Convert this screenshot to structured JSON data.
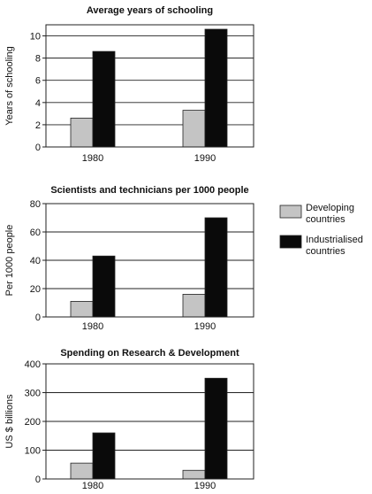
{
  "chart_data": [
    {
      "type": "bar",
      "title": "Average years of schooling",
      "ylabel": "Years of schooling",
      "xlabel": "",
      "categories": [
        "1980",
        "1990"
      ],
      "ylim": [
        0,
        11
      ],
      "yticks": [
        0,
        2,
        4,
        6,
        8,
        10
      ],
      "grid": true,
      "series": [
        {
          "name": "Developing countries",
          "values": [
            2.6,
            3.3
          ]
        },
        {
          "name": "Industrialised countries",
          "values": [
            8.6,
            10.6
          ]
        }
      ]
    },
    {
      "type": "bar",
      "title": "Scientists and technicians per 1000 people",
      "ylabel": "Per 1000 people",
      "xlabel": "",
      "categories": [
        "1980",
        "1990"
      ],
      "ylim": [
        0,
        80
      ],
      "yticks": [
        0,
        20,
        40,
        60,
        80
      ],
      "grid": true,
      "series": [
        {
          "name": "Developing countries",
          "values": [
            11,
            16
          ]
        },
        {
          "name": "Industrialised countries",
          "values": [
            43,
            70
          ]
        }
      ]
    },
    {
      "type": "bar",
      "title": "Spending on Research & Development",
      "ylabel": "US $ billions",
      "xlabel": "",
      "categories": [
        "1980",
        "1990"
      ],
      "ylim": [
        0,
        400
      ],
      "yticks": [
        0,
        100,
        200,
        300,
        400
      ],
      "grid": true,
      "series": [
        {
          "name": "Developing countries",
          "values": [
            55,
            30
          ]
        },
        {
          "name": "Industrialised countries",
          "values": [
            160,
            350
          ]
        }
      ]
    }
  ],
  "legend": {
    "placement": "right",
    "items": [
      {
        "label_line1": "Developing",
        "label_line2": "countries",
        "color": "#c4c4c4"
      },
      {
        "label_line1": "Industrialised",
        "label_line2": "countries",
        "color": "#0a0a0a"
      }
    ]
  },
  "colors": {
    "developing": "#c4c4c4",
    "industrialised": "#0a0a0a",
    "grid": "#222222"
  }
}
